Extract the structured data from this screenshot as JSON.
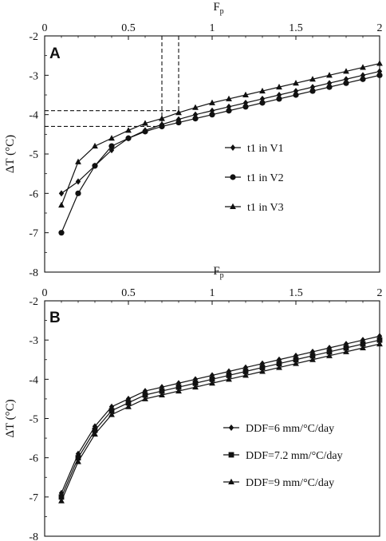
{
  "chart_data": [
    {
      "panel_label": "A",
      "type": "line",
      "xlabel": "F",
      "xlabel_sub": "p",
      "ylabel": "ΔT (°C)",
      "xlim": [
        0,
        2
      ],
      "ylim": [
        -8,
        -2
      ],
      "xticks": [
        "0",
        "0.5",
        "1",
        "1.5",
        "2"
      ],
      "yticks": [
        "-2",
        "-3",
        "-4",
        "-5",
        "-6",
        "-7",
        "-8"
      ],
      "grid": false,
      "legend_position": "right-center",
      "series": [
        {
          "name": "t1 in V1",
          "marker": "diamond",
          "x": [
            0.1,
            0.2,
            0.3,
            0.4,
            0.5,
            0.6,
            0.7,
            0.8,
            0.9,
            1.0,
            1.1,
            1.2,
            1.3,
            1.4,
            1.5,
            1.6,
            1.7,
            1.8,
            1.9,
            2.0
          ],
          "y": [
            -6.0,
            -5.7,
            -5.3,
            -4.9,
            -4.6,
            -4.4,
            -4.25,
            -4.12,
            -4.0,
            -3.9,
            -3.8,
            -3.7,
            -3.6,
            -3.5,
            -3.4,
            -3.3,
            -3.2,
            -3.1,
            -3.0,
            -2.9
          ]
        },
        {
          "name": "t1 in V2",
          "marker": "circle",
          "x": [
            0.1,
            0.2,
            0.3,
            0.4,
            0.5,
            0.6,
            0.7,
            0.8,
            0.9,
            1.0,
            1.1,
            1.2,
            1.3,
            1.4,
            1.5,
            1.6,
            1.7,
            1.8,
            1.9,
            2.0
          ],
          "y": [
            -7.0,
            -6.0,
            -5.3,
            -4.8,
            -4.6,
            -4.43,
            -4.3,
            -4.2,
            -4.1,
            -4.0,
            -3.9,
            -3.8,
            -3.7,
            -3.6,
            -3.5,
            -3.4,
            -3.3,
            -3.2,
            -3.1,
            -3.0
          ]
        },
        {
          "name": "t1 in V3",
          "marker": "triangle",
          "x": [
            0.1,
            0.2,
            0.3,
            0.4,
            0.5,
            0.6,
            0.7,
            0.8,
            0.9,
            1.0,
            1.1,
            1.2,
            1.3,
            1.4,
            1.5,
            1.6,
            1.7,
            1.8,
            1.9,
            2.0
          ],
          "y": [
            -6.3,
            -5.2,
            -4.8,
            -4.6,
            -4.4,
            -4.22,
            -4.1,
            -3.95,
            -3.82,
            -3.7,
            -3.6,
            -3.5,
            -3.4,
            -3.3,
            -3.2,
            -3.1,
            -3.0,
            -2.9,
            -2.8,
            -2.7
          ]
        }
      ],
      "reference_lines": [
        {
          "x": 0.7,
          "y": -4.3
        },
        {
          "x": 0.8,
          "y": -3.9
        }
      ]
    },
    {
      "panel_label": "B",
      "type": "line",
      "xlabel": "F",
      "xlabel_sub": "p",
      "ylabel": "ΔT (°C)",
      "xlim": [
        0,
        2
      ],
      "ylim": [
        -8,
        -2
      ],
      "xticks": [
        "0",
        "0.5",
        "1",
        "1.5",
        "2"
      ],
      "yticks": [
        "-2",
        "-3",
        "-4",
        "-5",
        "-6",
        "-7",
        "-8"
      ],
      "grid": false,
      "legend_position": "bottom-right",
      "series": [
        {
          "name": "DDF=6 mm/°C/day",
          "marker": "diamond",
          "x": [
            0.1,
            0.2,
            0.3,
            0.4,
            0.5,
            0.6,
            0.7,
            0.8,
            0.9,
            1.0,
            1.1,
            1.2,
            1.3,
            1.4,
            1.5,
            1.6,
            1.7,
            1.8,
            1.9,
            2.0
          ],
          "y": [
            -6.9,
            -5.9,
            -5.2,
            -4.7,
            -4.5,
            -4.3,
            -4.2,
            -4.1,
            -4.0,
            -3.9,
            -3.8,
            -3.7,
            -3.6,
            -3.5,
            -3.4,
            -3.3,
            -3.2,
            -3.1,
            -3.0,
            -2.9
          ]
        },
        {
          "name": "DDF=7.2 mm/°C/day",
          "marker": "square",
          "x": [
            0.1,
            0.2,
            0.3,
            0.4,
            0.5,
            0.6,
            0.7,
            0.8,
            0.9,
            1.0,
            1.1,
            1.2,
            1.3,
            1.4,
            1.5,
            1.6,
            1.7,
            1.8,
            1.9,
            2.0
          ],
          "y": [
            -7.0,
            -6.0,
            -5.3,
            -4.8,
            -4.6,
            -4.4,
            -4.3,
            -4.2,
            -4.1,
            -4.0,
            -3.9,
            -3.8,
            -3.7,
            -3.6,
            -3.5,
            -3.4,
            -3.3,
            -3.2,
            -3.1,
            -3.0
          ]
        },
        {
          "name": "DDF=9 mm/°C/day",
          "marker": "triangle",
          "x": [
            0.1,
            0.2,
            0.3,
            0.4,
            0.5,
            0.6,
            0.7,
            0.8,
            0.9,
            1.0,
            1.1,
            1.2,
            1.3,
            1.4,
            1.5,
            1.6,
            1.7,
            1.8,
            1.9,
            2.0
          ],
          "y": [
            -7.1,
            -6.1,
            -5.4,
            -4.9,
            -4.7,
            -4.5,
            -4.4,
            -4.3,
            -4.2,
            -4.1,
            -4.0,
            -3.9,
            -3.8,
            -3.7,
            -3.6,
            -3.5,
            -3.4,
            -3.3,
            -3.2,
            -3.1
          ]
        }
      ]
    }
  ]
}
